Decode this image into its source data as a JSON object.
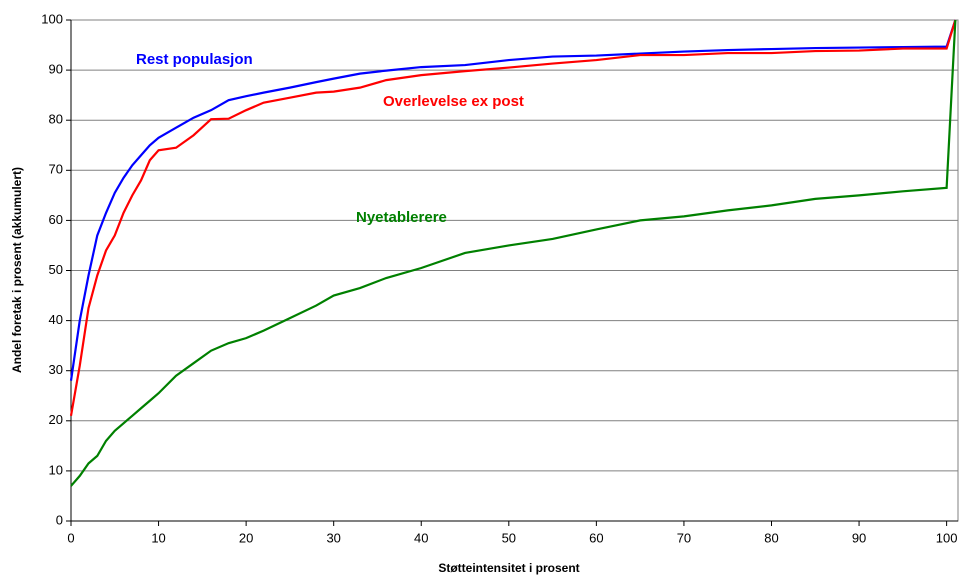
{
  "chart_data": {
    "type": "line",
    "x_label": "Støtteintensitet i prosent",
    "y_label": "Andel foretak i prosent (akkumulert)",
    "x": [
      0,
      1,
      2,
      3,
      4,
      5,
      6,
      7,
      8,
      9,
      10,
      12,
      14,
      16,
      18,
      20,
      22,
      25,
      28,
      30,
      33,
      36,
      40,
      45,
      50,
      55,
      60,
      65,
      70,
      75,
      80,
      85,
      90,
      95,
      100,
      101
    ],
    "series": [
      {
        "name": "Rest populasjon",
        "color": "#0000ff",
        "values": [
          28,
          40,
          49,
          57,
          61.5,
          65.5,
          68.5,
          71,
          73,
          75,
          76.5,
          78.5,
          80.5,
          82,
          84,
          84.8,
          85.5,
          86.5,
          87.6,
          88.3,
          89.3,
          89.9,
          90.6,
          91,
          92,
          92.7,
          92.9,
          93.3,
          93.7,
          94,
          94.2,
          94.4,
          94.5,
          94.6,
          94.7,
          100
        ]
      },
      {
        "name": "Overlevelse ex post",
        "color": "#ff0000",
        "values": [
          21,
          31,
          42.5,
          49,
          54,
          57,
          61.5,
          65,
          68,
          72,
          74,
          74.5,
          77,
          80.2,
          80.3,
          82,
          83.5,
          84.5,
          85.5,
          85.7,
          86.5,
          88,
          89,
          89.8,
          90.5,
          91.3,
          92,
          93,
          93,
          93.4,
          93.4,
          93.8,
          93.9,
          94.3,
          94.3,
          100
        ]
      },
      {
        "name": "Nyetablerere",
        "color": "#008000",
        "values": [
          7,
          9,
          11.5,
          13,
          16,
          18,
          19.5,
          21,
          22.5,
          24,
          25.5,
          29,
          31.5,
          34,
          35.5,
          36.5,
          38,
          40.5,
          43,
          45,
          46.5,
          48.5,
          50.5,
          53.5,
          55,
          56.3,
          58.2,
          60,
          60.8,
          62,
          63,
          64.3,
          65,
          65.8,
          66.5,
          100
        ]
      }
    ],
    "xlim": [
      0,
      101.3
    ],
    "ylim": [
      0,
      100
    ],
    "xticks": [
      0,
      10,
      20,
      30,
      40,
      50,
      60,
      70,
      80,
      90,
      100
    ],
    "yticks": [
      0,
      10,
      20,
      30,
      40,
      50,
      60,
      70,
      80,
      90,
      100
    ],
    "grid": true
  }
}
